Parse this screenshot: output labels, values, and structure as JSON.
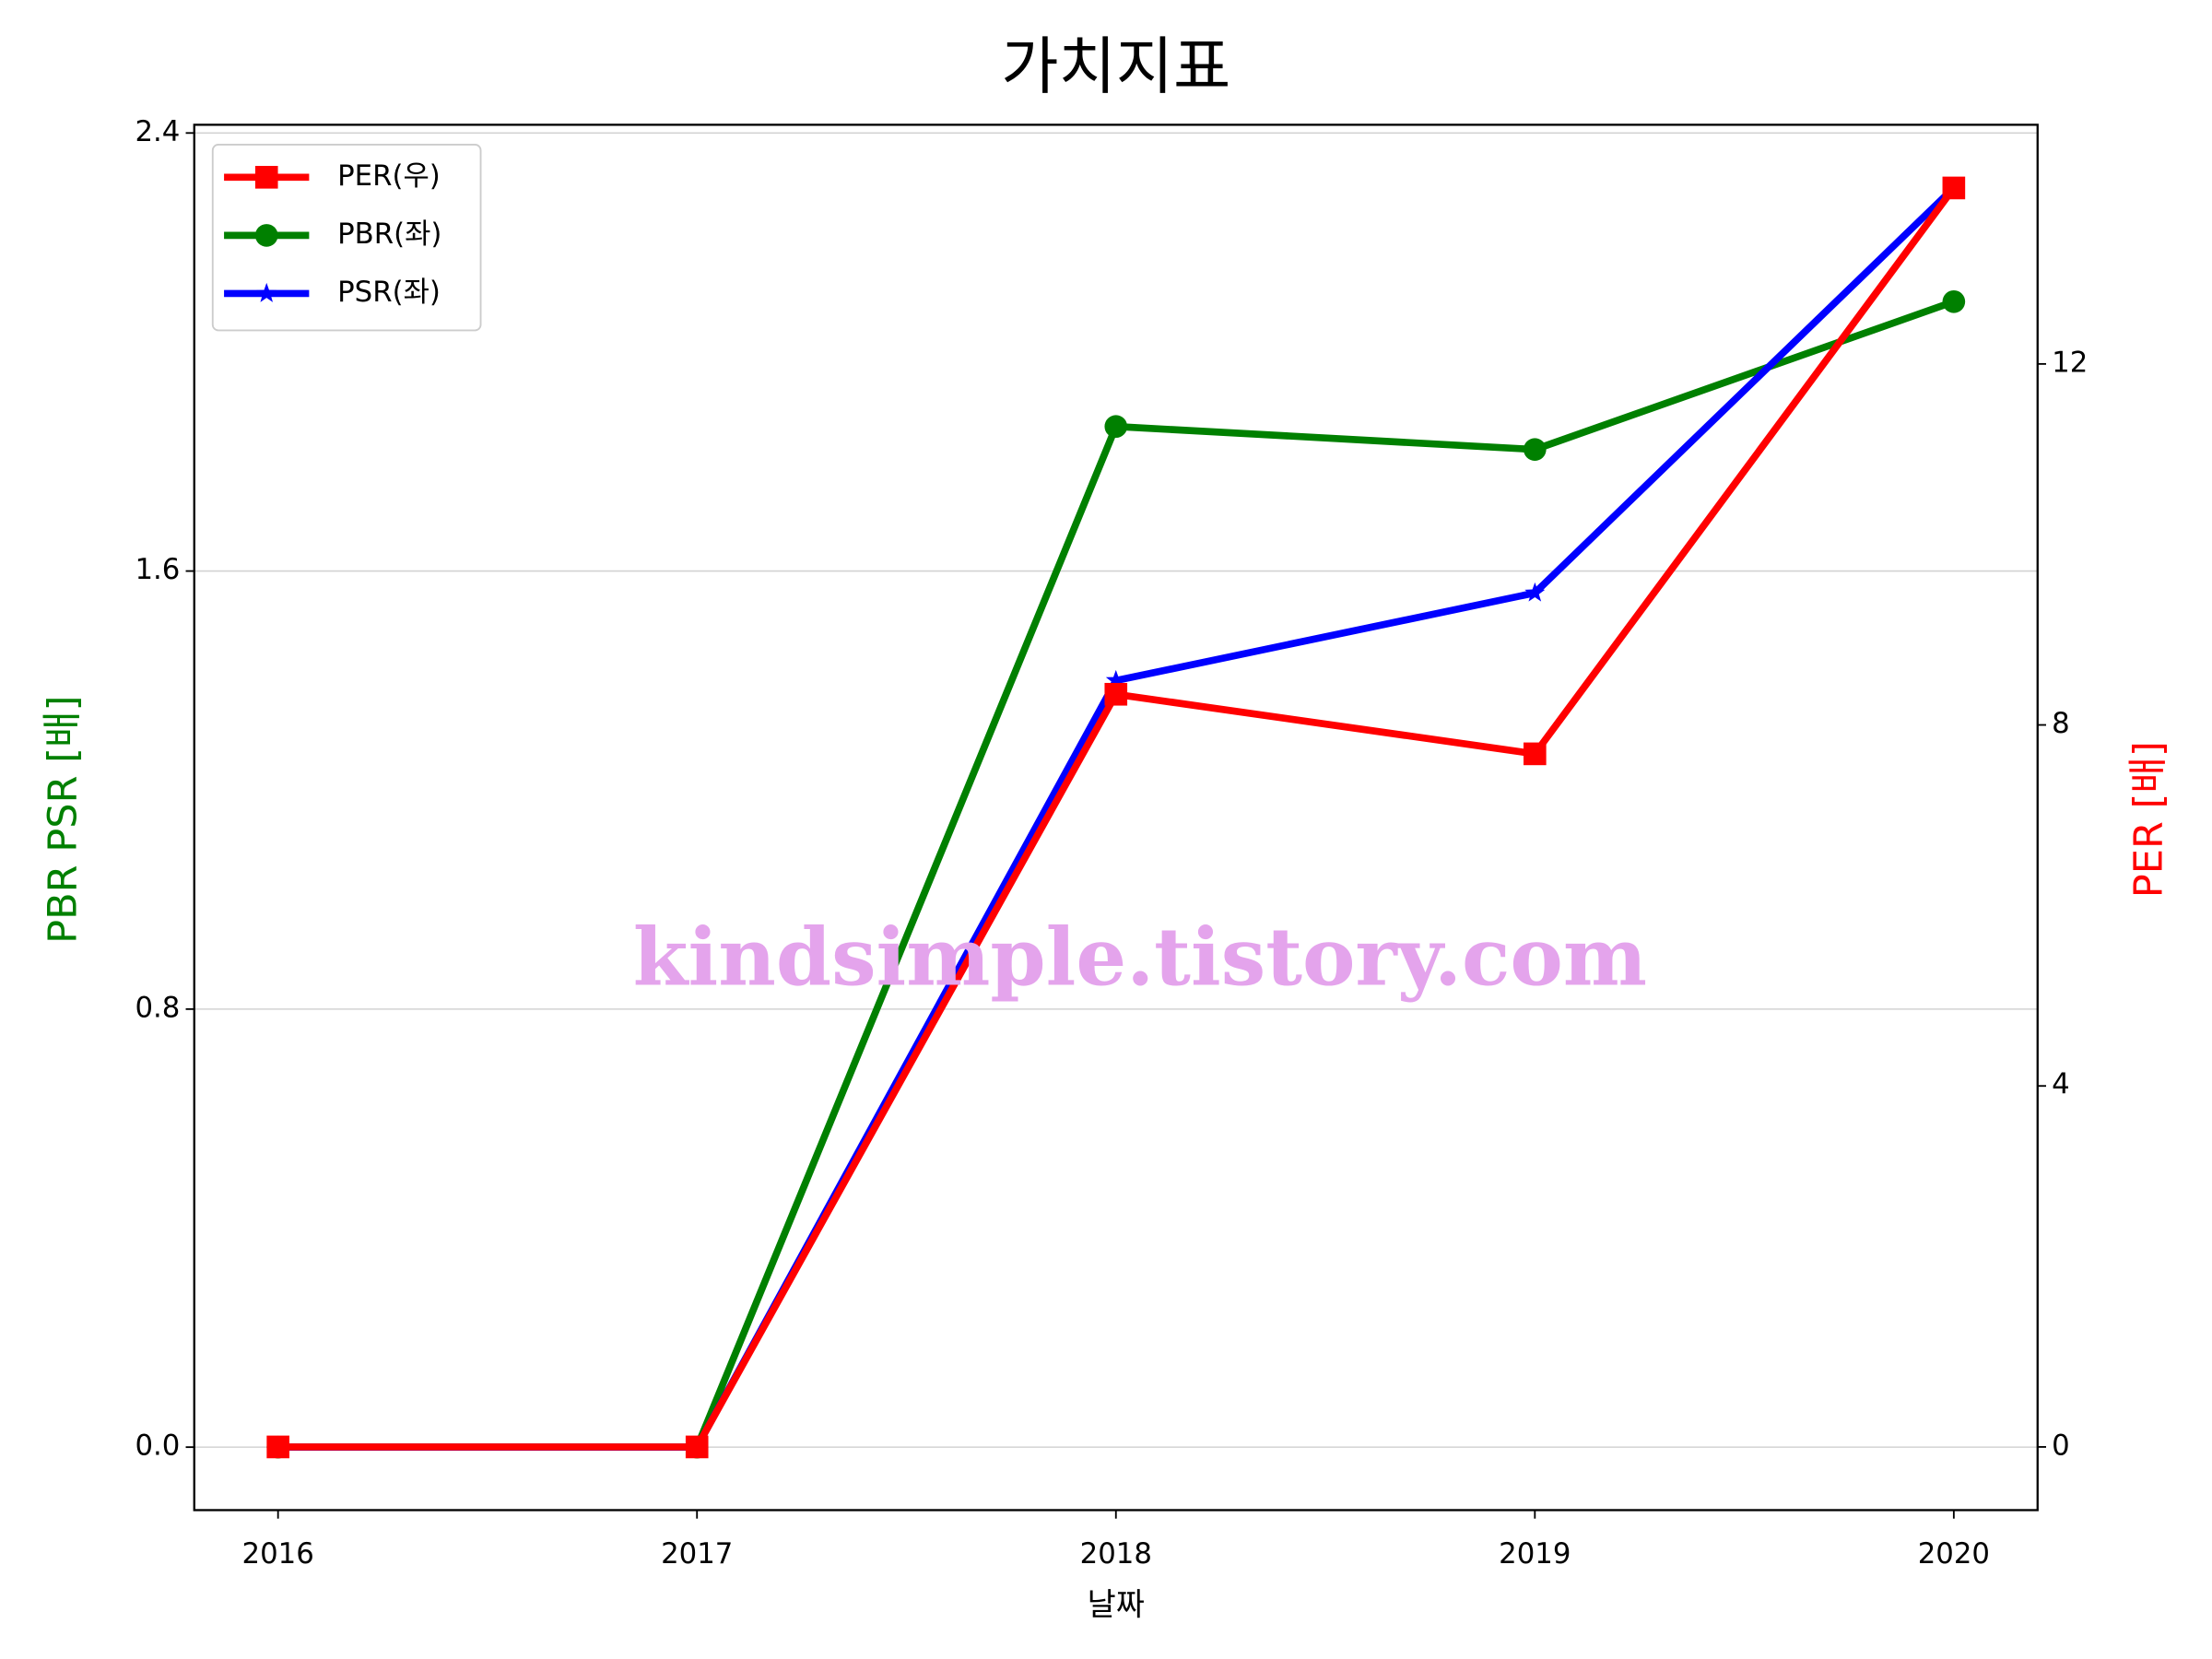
{
  "chart_data": {
    "type": "line",
    "title": "가치지표",
    "xlabel": "날짜",
    "ylabel": "PBR PSR [배]",
    "y2label": "PER [배]",
    "annotation": "kindsimple.tistory.com",
    "x": [
      2016,
      2017,
      2018,
      2019,
      2020
    ],
    "xlim": [
      2015.8,
      2020.2
    ],
    "xticks": [
      2016,
      2017,
      2018,
      2019,
      2020
    ],
    "ylim": [
      -0.115,
      2.415
    ],
    "yticks": [
      {
        "value": 0,
        "label": "0.0"
      },
      0.8,
      1.6,
      2.4
    ],
    "y2lim": [
      -0.7,
      14.65
    ],
    "y2ticks": [
      0,
      4,
      8,
      12
    ],
    "grid": true,
    "legend": "upper left",
    "series": [
      {
        "name": "PER(우)",
        "color": "#ff0000",
        "marker": "square",
        "axis": "y2",
        "values": [
          0,
          0,
          8.34,
          7.68,
          13.95
        ]
      },
      {
        "name": "PBR(좌)",
        "color": "#008000",
        "marker": "circle",
        "values": [
          0,
          0,
          1.864,
          1.822,
          2.092
        ]
      },
      {
        "name": "PSR(좌)",
        "color": "#0000ff",
        "marker": "star",
        "values": [
          0,
          0,
          1.4,
          1.56,
          2.3
        ]
      }
    ]
  }
}
